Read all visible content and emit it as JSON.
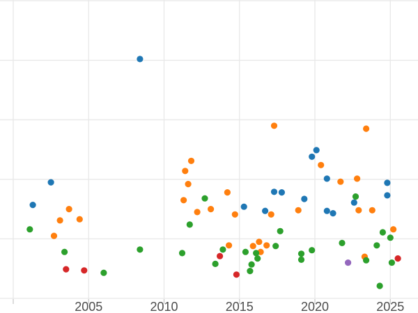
{
  "style": {
    "background_color": "#ffffff",
    "gridline_color": "#e8e8e8",
    "tick_color": "#c9c9c9",
    "tick_label_color": "#4d4d4d",
    "tick_label_font_size_px": 18
  },
  "chart_data": {
    "type": "scatter",
    "title": "",
    "xlabel": "",
    "ylabel": "",
    "grid": true,
    "legend": "none",
    "x_axis": {
      "tick_labels": [
        "2005",
        "2010",
        "2015",
        "2020",
        "2025"
      ],
      "tick_years": [
        2005,
        2010,
        2015,
        2020,
        2025
      ],
      "gridline_years": [
        2000,
        2005,
        2010,
        2015,
        2020,
        2025
      ],
      "visible_range": [
        1999.1,
        2026.8
      ]
    },
    "y_axis": {
      "tick_labels": [],
      "gridline_values": [
        0,
        1,
        2,
        3,
        4,
        5
      ],
      "visible_range": [
        0,
        5.0
      ]
    },
    "series": [
      {
        "name": "blue",
        "color": "#1f77b4",
        "points": [
          [
            2001.3,
            1.57
          ],
          [
            2002.5,
            1.95
          ],
          [
            2008.4,
            4.02
          ],
          [
            2015.3,
            1.54
          ],
          [
            2016.7,
            1.47
          ],
          [
            2017.3,
            1.79
          ],
          [
            2017.8,
            1.78
          ],
          [
            2019.3,
            1.67
          ],
          [
            2019.8,
            2.38
          ],
          [
            2020.1,
            2.49
          ],
          [
            2020.8,
            2.01
          ],
          [
            2020.8,
            1.47
          ],
          [
            2021.2,
            1.43
          ],
          [
            2022.6,
            1.61
          ],
          [
            2024.8,
            1.94
          ],
          [
            2024.8,
            1.73
          ]
        ]
      },
      {
        "name": "orange",
        "color": "#ff7f0e",
        "points": [
          [
            2002.7,
            1.05
          ],
          [
            2003.1,
            1.31
          ],
          [
            2003.7,
            1.5
          ],
          [
            2004.4,
            1.33
          ],
          [
            2011.3,
            1.65
          ],
          [
            2011.4,
            2.14
          ],
          [
            2011.6,
            1.92
          ],
          [
            2011.8,
            2.31
          ],
          [
            2012.2,
            1.45
          ],
          [
            2013.1,
            1.5
          ],
          [
            2014.2,
            1.78
          ],
          [
            2014.3,
            0.89
          ],
          [
            2014.7,
            1.41
          ],
          [
            2015.9,
            0.88
          ],
          [
            2016.3,
            0.95
          ],
          [
            2016.8,
            0.89
          ],
          [
            2016.4,
            0.78
          ],
          [
            2017.1,
            1.41
          ],
          [
            2017.3,
            2.9
          ],
          [
            2018.9,
            1.48
          ],
          [
            2020.4,
            2.24
          ],
          [
            2021.7,
            1.96
          ],
          [
            2022.8,
            2.01
          ],
          [
            2022.9,
            1.48
          ],
          [
            2023.8,
            1.48
          ],
          [
            2023.4,
            2.85
          ],
          [
            2023.3,
            0.7
          ],
          [
            2025.2,
            1.16
          ]
        ]
      },
      {
        "name": "green",
        "color": "#2ca02c",
        "points": [
          [
            2001.1,
            1.16
          ],
          [
            2003.4,
            0.78
          ],
          [
            2006.0,
            0.43
          ],
          [
            2008.4,
            0.82
          ],
          [
            2011.2,
            0.76
          ],
          [
            2011.7,
            1.24
          ],
          [
            2012.7,
            1.68
          ],
          [
            2013.4,
            0.58
          ],
          [
            2013.9,
            0.82
          ],
          [
            2015.4,
            0.78
          ],
          [
            2015.7,
            0.46
          ],
          [
            2015.8,
            0.57
          ],
          [
            2016.1,
            0.76
          ],
          [
            2016.2,
            0.67
          ],
          [
            2017.4,
            0.88
          ],
          [
            2017.7,
            1.13
          ],
          [
            2019.1,
            0.75
          ],
          [
            2019.1,
            0.65
          ],
          [
            2019.8,
            0.81
          ],
          [
            2021.8,
            0.93
          ],
          [
            2022.7,
            1.71
          ],
          [
            2023.4,
            0.64
          ],
          [
            2024.1,
            0.89
          ],
          [
            2024.3,
            0.21
          ],
          [
            2024.5,
            1.11
          ],
          [
            2025.0,
            1.02
          ],
          [
            2025.1,
            0.6
          ]
        ]
      },
      {
        "name": "red",
        "color": "#d62728",
        "points": [
          [
            2003.5,
            0.49
          ],
          [
            2004.7,
            0.47
          ],
          [
            2013.7,
            0.71
          ],
          [
            2014.8,
            0.4
          ],
          [
            2025.5,
            0.67
          ]
        ]
      },
      {
        "name": "purple",
        "color": "#9467bd",
        "points": [
          [
            2022.2,
            0.6
          ]
        ]
      }
    ]
  }
}
